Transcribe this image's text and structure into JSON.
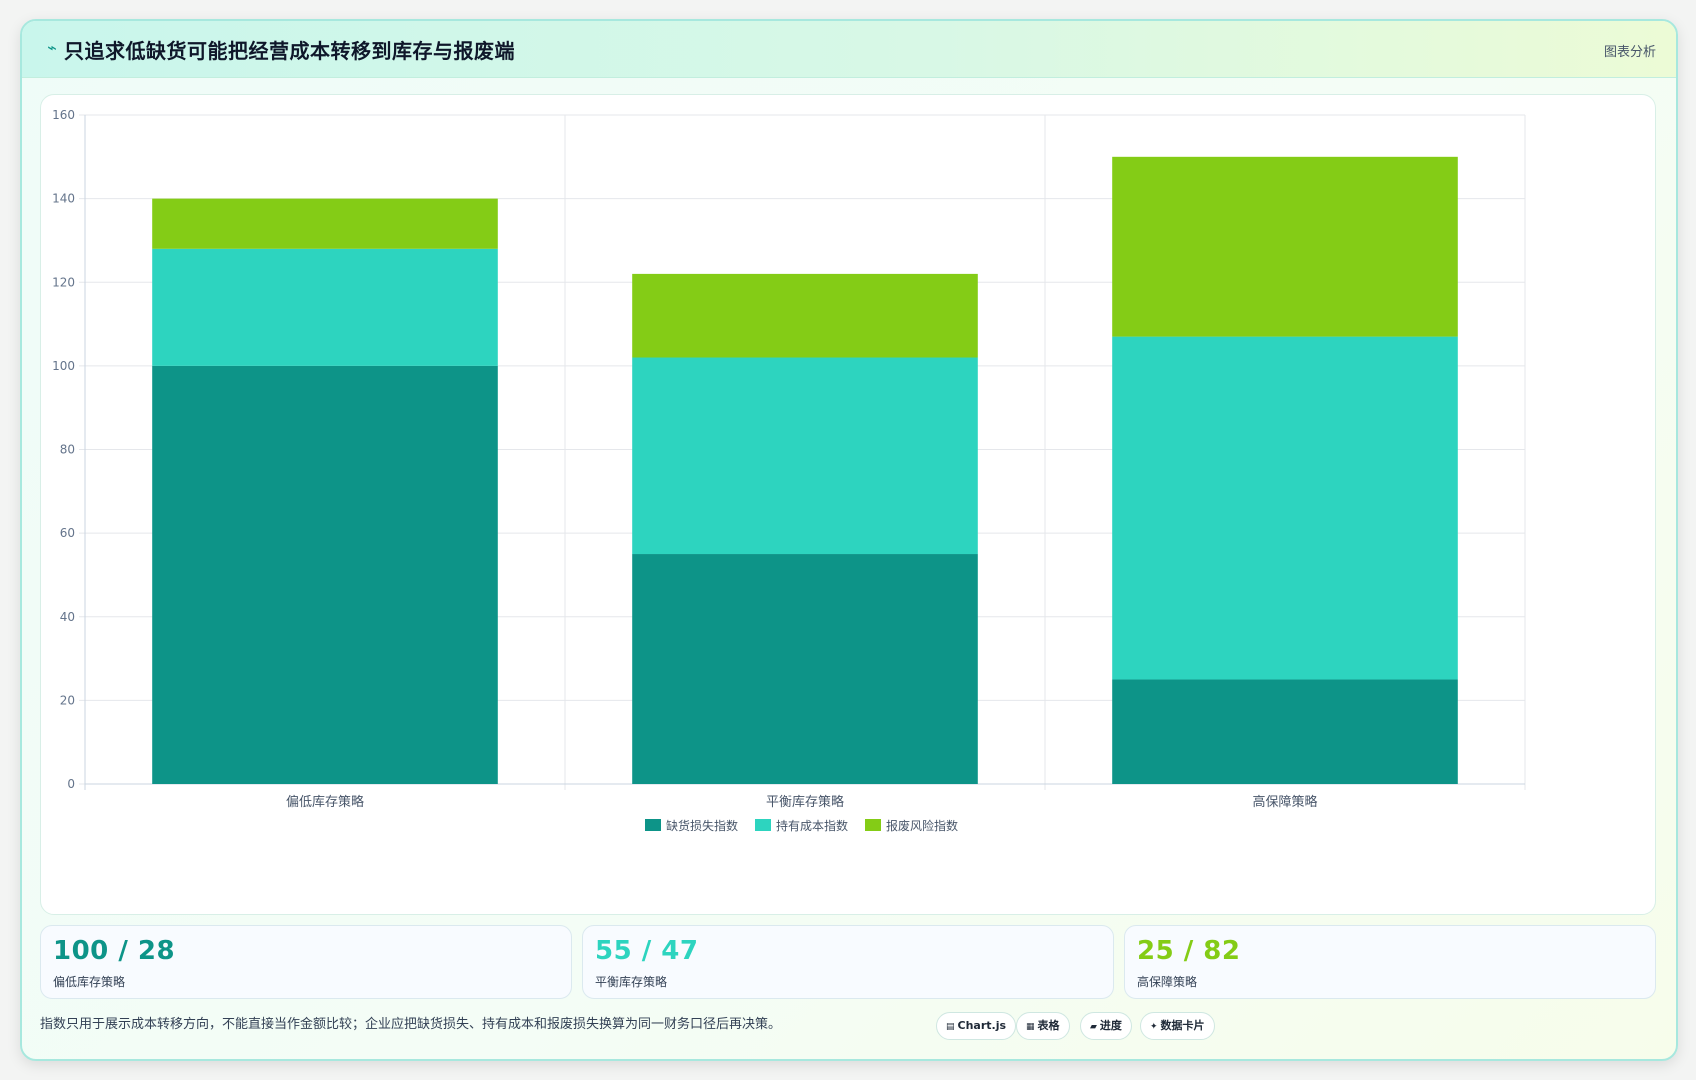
{
  "header": {
    "title": "只追求低缺货可能把经营成本转移到库存与报废端",
    "tag": "图表分析"
  },
  "chart_data": {
    "type": "bar",
    "stacked": true,
    "title": "",
    "categories": [
      "偏低库存策略",
      "平衡库存策略",
      "高保障策略"
    ],
    "series": [
      {
        "name": "缺货损失指数",
        "values": [
          100,
          55,
          25
        ],
        "color": "#0d9488"
      },
      {
        "name": "持有成本指数",
        "values": [
          28,
          47,
          82
        ],
        "color": "#2dd4bf"
      },
      {
        "name": "报废风险指数",
        "values": [
          12,
          20,
          43
        ],
        "color": "#84cc16"
      }
    ],
    "ylim": [
      0,
      160
    ],
    "yticks": [
      0,
      20,
      40,
      60,
      80,
      100,
      120,
      140,
      160
    ],
    "grid": true,
    "legend_position": "bottom"
  },
  "stats": [
    {
      "value": "100 / 28",
      "label": "偏低库存策略",
      "color": "#0d9488"
    },
    {
      "value": "55 / 47",
      "label": "平衡库存策略",
      "color": "#2dd4bf"
    },
    {
      "value": "25 / 82",
      "label": "高保障策略",
      "color": "#84cc16"
    }
  ],
  "footnote": "指数只用于展示成本转移方向，不能直接当作金额比较；企业应把缺货损失、持有成本和报废损失换算为同一财务口径后再决策。",
  "chips": [
    {
      "icon": "▤",
      "label": "Chart.js"
    },
    {
      "icon": "▦",
      "label": "表格"
    },
    {
      "icon": "▰",
      "label": "进度"
    },
    {
      "icon": "✦",
      "label": "数据卡片"
    }
  ]
}
